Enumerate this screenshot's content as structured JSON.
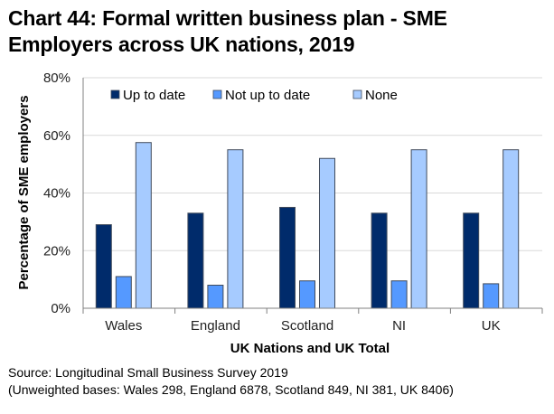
{
  "chart_data": {
    "type": "bar",
    "title": "Chart 44: Formal written business plan - SME Employers across UK nations, 2019",
    "title_lines": [
      "Chart 44: Formal written business plan - SME",
      "Employers across UK nations, 2019"
    ],
    "xlabel": "UK Nations and UK Total",
    "ylabel": "Percentage of SME employers",
    "ylim": [
      0,
      80
    ],
    "yticks": [
      0,
      20,
      40,
      60,
      80
    ],
    "ytick_labels": [
      "0%",
      "20%",
      "40%",
      "60%",
      "80%"
    ],
    "grid": true,
    "legend_position": "top",
    "categories": [
      "Wales",
      "England",
      "Scotland",
      "NI",
      "UK"
    ],
    "series": [
      {
        "name": "Up to date",
        "color": "#002b6b",
        "values": [
          29,
          33,
          35,
          33,
          33
        ]
      },
      {
        "name": "Not up to date",
        "color": "#5599ff",
        "values": [
          11,
          8,
          9.5,
          9.5,
          8.5
        ]
      },
      {
        "name": "None",
        "color": "#a6cbff",
        "values": [
          57.5,
          55,
          52,
          55,
          55
        ]
      }
    ]
  },
  "source": {
    "line1": "Source: Longitudinal Small Business Survey 2019",
    "line2": "(Unweighted bases: Wales 298, England 6878, Scotland 849, NI 381, UK 8406)"
  }
}
